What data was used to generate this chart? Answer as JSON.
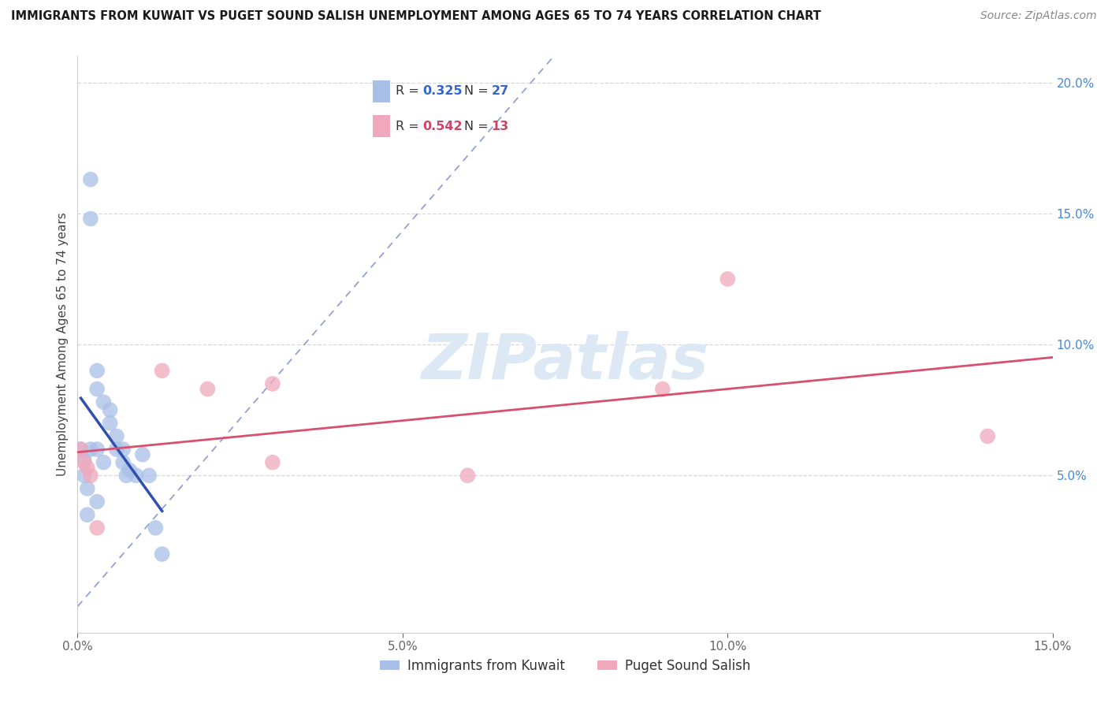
{
  "title": "IMMIGRANTS FROM KUWAIT VS PUGET SOUND SALISH UNEMPLOYMENT AMONG AGES 65 TO 74 YEARS CORRELATION CHART",
  "source": "Source: ZipAtlas.com",
  "ylabel": "Unemployment Among Ages 65 to 74 years",
  "xlim": [
    0,
    0.15
  ],
  "ylim": [
    -0.01,
    0.21
  ],
  "x_ticks": [
    0.0,
    0.05,
    0.1,
    0.15
  ],
  "x_tick_labels": [
    "0.0%",
    "5.0%",
    "10.0%",
    "15.0%"
  ],
  "y_ticks_right": [
    0.05,
    0.1,
    0.15,
    0.2
  ],
  "y_tick_labels_right": [
    "5.0%",
    "10.0%",
    "15.0%",
    "20.0%"
  ],
  "blue_R": "0.325",
  "blue_N": "27",
  "pink_R": "0.542",
  "pink_N": "13",
  "blue_color": "#a8c0e8",
  "pink_color": "#f0a8bc",
  "blue_line_color": "#3050b0",
  "pink_line_color": "#d85070",
  "blue_dash_color": "#8090d0",
  "watermark_color": "#dde8f5",
  "background_color": "#ffffff",
  "grid_color": "#d8d8d8",
  "blue_label": "Immigrants from Kuwait",
  "pink_label": "Puget Sound Salish",
  "blue_x": [
    0.0005,
    0.001,
    0.001,
    0.0015,
    0.002,
    0.002,
    0.002,
    0.003,
    0.003,
    0.003,
    0.004,
    0.004,
    0.005,
    0.005,
    0.006,
    0.006,
    0.007,
    0.007,
    0.0075,
    0.008,
    0.009,
    0.01,
    0.011,
    0.012,
    0.013,
    0.0015,
    0.003
  ],
  "blue_y": [
    0.06,
    0.05,
    0.056,
    0.045,
    0.163,
    0.148,
    0.06,
    0.09,
    0.083,
    0.06,
    0.078,
    0.055,
    0.075,
    0.07,
    0.065,
    0.06,
    0.06,
    0.055,
    0.05,
    0.052,
    0.05,
    0.058,
    0.05,
    0.03,
    0.02,
    0.035,
    0.04
  ],
  "pink_x": [
    0.0005,
    0.001,
    0.0015,
    0.002,
    0.003,
    0.013,
    0.02,
    0.03,
    0.03,
    0.06,
    0.09,
    0.1,
    0.14
  ],
  "pink_y": [
    0.06,
    0.055,
    0.053,
    0.05,
    0.03,
    0.09,
    0.083,
    0.085,
    0.055,
    0.05,
    0.083,
    0.125,
    0.065
  ],
  "blue_line_x": [
    0.0005,
    0.013
  ],
  "pink_line_x": [
    0.0,
    0.15
  ]
}
